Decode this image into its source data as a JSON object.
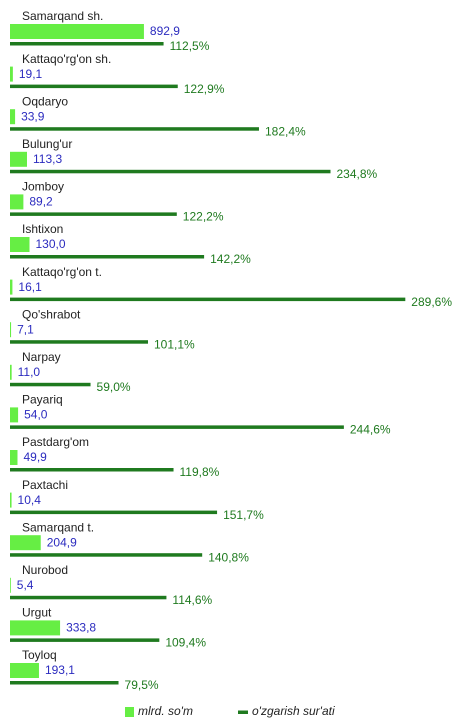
{
  "chart_data": {
    "type": "hbar-pair",
    "categories": [
      "Samarqand sh.",
      "Kattaqo'rg'on sh.",
      "Oqdaryo",
      "Bulung'ur",
      "Jomboy",
      "Ishtixon",
      "Kattaqo'rg'on t.",
      "Qo'shrabot",
      "Narpay",
      "Payariq",
      "Pastdarg'om",
      "Paxtachi",
      "Samarqand t.",
      "Nurobod",
      "Urgut",
      "Toyloq"
    ],
    "series": [
      {
        "name": "mlrd. so'm",
        "color": "#66ee44",
        "label_color": "#2b2bbf",
        "values": [
          892.9,
          19.1,
          33.9,
          113.3,
          89.2,
          130.0,
          16.1,
          7.1,
          11.0,
          54.0,
          49.9,
          10.4,
          204.9,
          5.4,
          333.8,
          193.1
        ],
        "value_labels": [
          "892,9",
          "19,1",
          "33,9",
          "113,3",
          "89,2",
          "130,0",
          "16,1",
          "7,1",
          "11,0",
          "54,0",
          "49,9",
          "10,4",
          "204,9",
          "5,4",
          "333,8",
          "193,1"
        ]
      },
      {
        "name": "o'zgarish sur'ati",
        "color": "#1f7a1f",
        "label_color": "#1f7a1f",
        "values": [
          112.5,
          122.9,
          182.4,
          234.8,
          122.2,
          142.2,
          289.6,
          101.1,
          59.0,
          244.6,
          119.8,
          151.7,
          140.8,
          114.6,
          109.4,
          79.5
        ],
        "value_labels": [
          "112,5%",
          "122,9%",
          "182,4%",
          "234,8%",
          "122,2%",
          "142,2%",
          "289,6%",
          "101,1%",
          "59,0%",
          "244,6%",
          "119,8%",
          "151,7%",
          "140,8%",
          "114,6%",
          "109,4%",
          "79,5%"
        ]
      }
    ]
  }
}
